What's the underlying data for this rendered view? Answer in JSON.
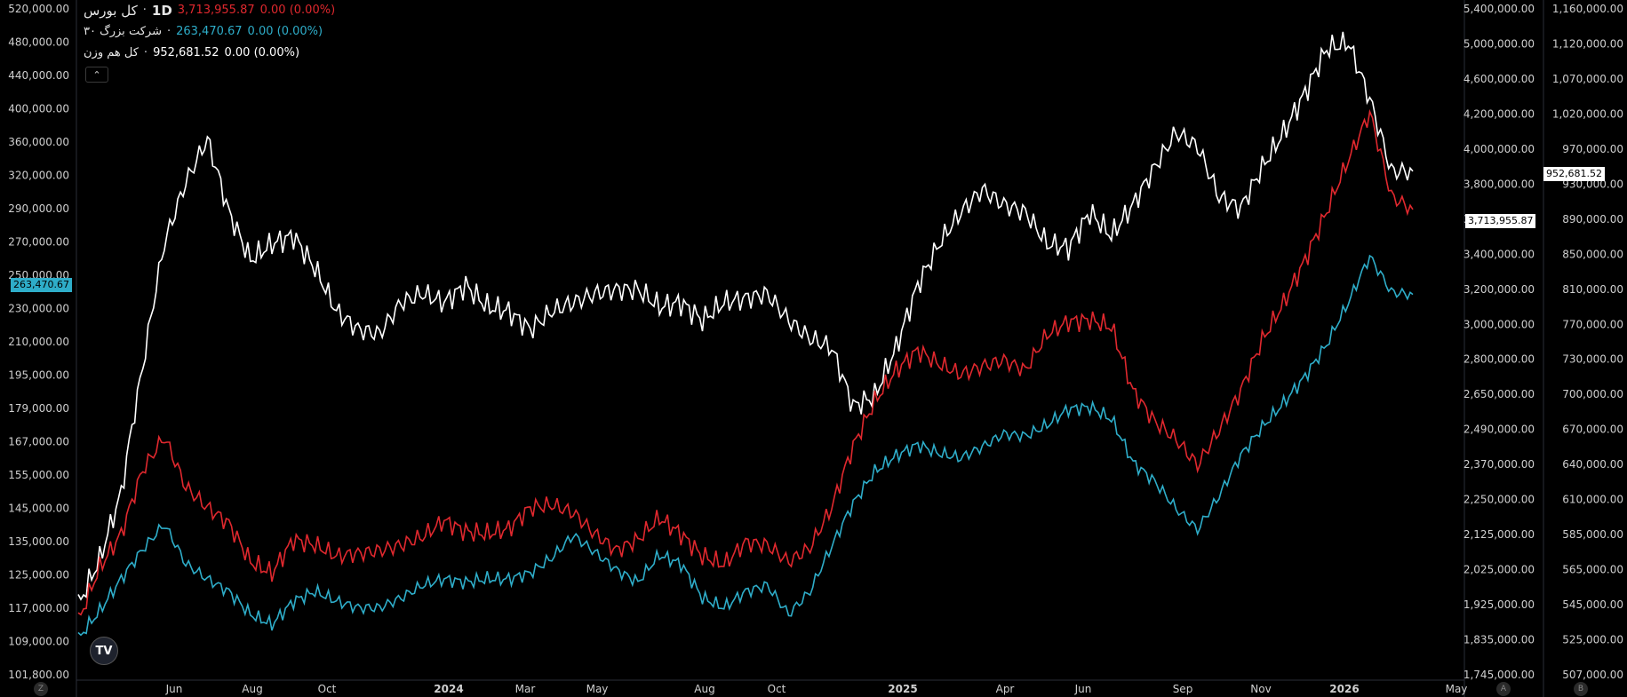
{
  "legend": {
    "rows": [
      {
        "name": "کل بورس",
        "interval": "1D",
        "value": "3,713,955.87",
        "change": "0.00 (0.00%)",
        "color": "#e0282e"
      },
      {
        "name": "شرکت بزرگ ۳۰",
        "interval": "",
        "value": "263,470.67",
        "change": "0.00 (0.00%)",
        "color": "#2eadc9"
      },
      {
        "name": "کل هم وزن",
        "interval": "",
        "value": "952,681.52",
        "change": "0.00 (0.00%)",
        "color": "#ffffff"
      }
    ],
    "collapse_icon": "chevron-up-icon"
  },
  "logo": {
    "text": "TV"
  },
  "corner_buttons": {
    "left": "Z",
    "a": "A",
    "b": "B"
  },
  "chart_data": {
    "type": "line",
    "x_ticks": [
      "Jun",
      "Aug",
      "Oct",
      "2024",
      "Mar",
      "May",
      "Aug",
      "Oct",
      "2025",
      "Apr",
      "Jun",
      "Sep",
      "Nov",
      "2026",
      "May"
    ],
    "left_axis_ticks": [
      "520,000.00",
      "480,000.00",
      "440,000.00",
      "400,000.00",
      "360,000.00",
      "320,000.00",
      "290,000.00",
      "270,000.00",
      "250,000.00",
      "230,000.00",
      "210,000.00",
      "195,000.00",
      "179,000.00",
      "167,000.00",
      "155,000.00",
      "145,000.00",
      "135,000.00",
      "125,000.00",
      "117,000.00",
      "109,000.00",
      "101,800.00"
    ],
    "right1_axis_ticks": [
      "5,400,000.00",
      "5,000,000.00",
      "4,600,000.00",
      "4,200,000.00",
      "4,000,000.00",
      "3,800,000.00",
      "3,600,000.00",
      "3,400,000.00",
      "3,200,000.00",
      "3,000,000.00",
      "2,800,000.00",
      "2,650,000.00",
      "2,490,000.00",
      "2,370,000.00",
      "2,250,000.00",
      "2,125,000.00",
      "2,025,000.00",
      "1,925,000.00",
      "1,835,000.00",
      "1,745,000.00"
    ],
    "right2_axis_ticks": [
      "1,160,000.00",
      "1,120,000.00",
      "1,070,000.00",
      "1,020,000.00",
      "970,000.00",
      "930,000.00",
      "890,000.00",
      "850,000.00",
      "810,000.00",
      "770,000.00",
      "730,000.00",
      "700,000.00",
      "670,000.00",
      "640,000.00",
      "610,000.00",
      "585,000.00",
      "565,000.00",
      "545,000.00",
      "525,000.00",
      "507,000.00"
    ],
    "scale": "log",
    "last_values": {
      "white": "952,681.52",
      "red": "3,713,955.87",
      "cyan": "263,470.67"
    },
    "series": [
      {
        "name": "کل هم وزن",
        "color": "#ffffff",
        "values": [
          510000,
          545000,
          600000,
          720000,
          860000,
          940000,
          1000000,
          900000,
          840000,
          860000,
          870000,
          830000,
          780000,
          760000,
          755000,
          790000,
          800000,
          790000,
          810000,
          785000,
          780000,
          760000,
          780000,
          790000,
          800000,
          805000,
          805000,
          785000,
          790000,
          770000,
          790000,
          795000,
          800000,
          770000,
          750000,
          740000,
          680000,
          690000,
          740000,
          810000,
          860000,
          900000,
          930000,
          910000,
          900000,
          860000,
          855000,
          900000,
          870000,
          910000,
          960000,
          1010000,
          990000,
          920000,
          905000,
          960000,
          1010000,
          1070000,
          1140000,
          1150000,
          1060000,
          955000,
          955000
        ]
      },
      {
        "name": "کل بورس",
        "color": "#e0282e",
        "values": [
          1800000,
          1980000,
          2100000,
          2350000,
          2490000,
          2280000,
          2200000,
          2140000,
          2000000,
          1960000,
          2080000,
          2060000,
          2020000,
          2030000,
          2040000,
          2060000,
          2090000,
          2150000,
          2110000,
          2100000,
          2120000,
          2200000,
          2210000,
          2180000,
          2100000,
          2040000,
          2080000,
          2160000,
          2100000,
          2020000,
          1990000,
          2070000,
          2060000,
          2000000,
          2050000,
          2200000,
          2450000,
          2650000,
          2800000,
          2900000,
          2830000,
          2780000,
          2820000,
          2850000,
          2800000,
          2980000,
          3050000,
          3060000,
          3020000,
          2700000,
          2560000,
          2480000,
          2370000,
          2520000,
          2700000,
          2950000,
          3150000,
          3400000,
          3700000,
          4050000,
          4400000,
          3800000,
          3714000
        ]
      },
      {
        "name": "شرکت بزرگ ۳۰",
        "color": "#2eadc9",
        "values": [
          110000,
          118000,
          128000,
          138000,
          147000,
          133000,
          128000,
          124000,
          117000,
          114000,
          121000,
          124000,
          121000,
          119000,
          119000,
          122000,
          126000,
          128000,
          127000,
          128000,
          128000,
          130000,
          135000,
          143000,
          137000,
          131000,
          127000,
          136000,
          133000,
          122000,
          119000,
          124000,
          126000,
          117000,
          124000,
          139000,
          155000,
          168000,
          175000,
          180000,
          176000,
          174000,
          179000,
          185000,
          184000,
          189000,
          197000,
          198000,
          192000,
          172000,
          164000,
          153000,
          145000,
          158000,
          175000,
          188000,
          200000,
          214000,
          232000,
          258000,
          290000,
          265000,
          263471
        ]
      }
    ]
  }
}
